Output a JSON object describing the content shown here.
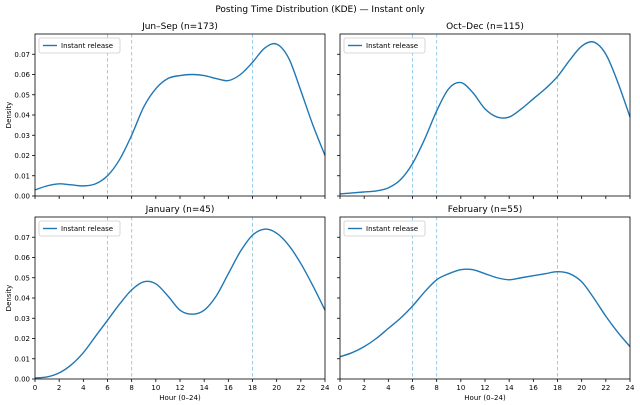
{
  "chart_data": {
    "suptitle": "Posting Time Distribution (KDE) — Instant only",
    "shared": {
      "type": "line",
      "xlabel": "Hour (0–24)",
      "ylabel": "Density",
      "xlim": [
        0,
        24
      ],
      "ylim": [
        0,
        0.08
      ],
      "xticks": [
        0,
        2,
        4,
        6,
        8,
        10,
        12,
        14,
        16,
        18,
        20,
        22,
        24
      ],
      "yticks": [
        0.0,
        0.01,
        0.02,
        0.03,
        0.04,
        0.05,
        0.06,
        0.07
      ],
      "ytick_labels": [
        "0.00",
        "0.01",
        "0.02",
        "0.03",
        "0.04",
        "0.05",
        "0.06",
        "0.07"
      ],
      "reference_lines_x": [
        6,
        8,
        18
      ],
      "legend_label": "Instant release",
      "line_color": "#1f77b4",
      "ref_color": "#8ec6e8"
    },
    "panels": [
      {
        "title": "Jun–Sep (n=173)",
        "x": [
          0,
          1,
          2,
          3,
          4,
          5,
          6,
          7,
          8,
          9,
          10,
          11,
          12,
          13,
          14,
          15,
          16,
          17,
          18,
          19,
          20,
          21,
          22,
          23,
          24
        ],
        "y": [
          0.003,
          0.005,
          0.006,
          0.0055,
          0.005,
          0.006,
          0.01,
          0.018,
          0.03,
          0.044,
          0.053,
          0.058,
          0.0595,
          0.06,
          0.0595,
          0.058,
          0.057,
          0.06,
          0.066,
          0.073,
          0.075,
          0.068,
          0.052,
          0.035,
          0.02
        ]
      },
      {
        "title": "Oct–Dec (n=115)",
        "x": [
          0,
          1,
          2,
          3,
          4,
          5,
          6,
          7,
          8,
          9,
          10,
          11,
          12,
          13,
          14,
          15,
          16,
          17,
          18,
          19,
          20,
          21,
          22,
          23,
          24
        ],
        "y": [
          0.001,
          0.0015,
          0.002,
          0.0025,
          0.004,
          0.008,
          0.016,
          0.028,
          0.042,
          0.053,
          0.056,
          0.051,
          0.043,
          0.039,
          0.039,
          0.043,
          0.048,
          0.053,
          0.059,
          0.067,
          0.074,
          0.076,
          0.07,
          0.056,
          0.039
        ]
      },
      {
        "title": "January (n=45)",
        "x": [
          0,
          1,
          2,
          3,
          4,
          5,
          6,
          7,
          8,
          9,
          10,
          11,
          12,
          13,
          14,
          15,
          16,
          17,
          18,
          19,
          20,
          21,
          22,
          23,
          24
        ],
        "y": [
          0.0005,
          0.001,
          0.003,
          0.007,
          0.013,
          0.021,
          0.029,
          0.037,
          0.044,
          0.048,
          0.047,
          0.041,
          0.034,
          0.032,
          0.034,
          0.041,
          0.052,
          0.063,
          0.071,
          0.074,
          0.072,
          0.066,
          0.057,
          0.046,
          0.034
        ]
      },
      {
        "title": "February (n=55)",
        "x": [
          0,
          1,
          2,
          3,
          4,
          5,
          6,
          7,
          8,
          9,
          10,
          11,
          12,
          13,
          14,
          15,
          16,
          17,
          18,
          19,
          20,
          21,
          22,
          23,
          24
        ],
        "y": [
          0.011,
          0.013,
          0.016,
          0.02,
          0.025,
          0.03,
          0.036,
          0.043,
          0.049,
          0.052,
          0.054,
          0.054,
          0.052,
          0.05,
          0.049,
          0.05,
          0.051,
          0.052,
          0.053,
          0.052,
          0.048,
          0.04,
          0.031,
          0.023,
          0.016
        ]
      }
    ]
  }
}
